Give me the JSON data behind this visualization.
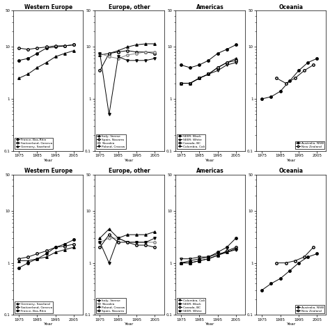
{
  "top_row": {
    "western_europe": {
      "title": "Western Europe",
      "series": [
        {
          "label": "France, Bas-Rhin",
          "marker": "o",
          "fillstyle": "full",
          "color": "black",
          "x": [
            1975,
            1980,
            1985,
            1990,
            1995,
            2000,
            2005
          ],
          "y": [
            5.5,
            6.0,
            7.5,
            9.5,
            10.0,
            10.5,
            11.0
          ]
        },
        {
          "label": "Switzerland, Geneva",
          "marker": "o",
          "fillstyle": "none",
          "color": "black",
          "x": [
            1975,
            1980,
            1985,
            1990,
            1995,
            2000,
            2005
          ],
          "y": [
            9.5,
            9.0,
            9.5,
            10.0,
            10.5,
            10.5,
            11.0
          ]
        },
        {
          "label": "Germany, Saarland",
          "marker": "^",
          "fillstyle": "full",
          "color": "black",
          "x": [
            1975,
            1980,
            1985,
            1990,
            1995,
            2000,
            2005
          ],
          "y": [
            2.5,
            3.0,
            4.0,
            5.0,
            6.5,
            7.5,
            8.5
          ]
        }
      ]
    },
    "europe_other": {
      "title": "Europe, other",
      "series": [
        {
          "label": "Italy, Varese",
          "marker": "^",
          "fillstyle": "full",
          "color": "black",
          "x": [
            1975,
            1980,
            1985,
            1990,
            1995,
            2000,
            2005
          ],
          "y": [
            7.0,
            7.5,
            8.5,
            10.0,
            11.0,
            11.5,
            11.5
          ]
        },
        {
          "label": "Spain, Navarra",
          "marker": "o",
          "fillstyle": "none",
          "color": "black",
          "x": [
            1975,
            1980,
            1985,
            1990,
            1995,
            2000,
            2005
          ],
          "y": [
            3.5,
            7.5,
            8.0,
            8.5,
            8.0,
            8.0,
            7.5
          ]
        },
        {
          "label": "Slovakia",
          "marker": "o",
          "fillstyle": "none",
          "color": "gray",
          "x": [
            1975,
            1980,
            1985,
            1990,
            1995,
            2000,
            2005
          ],
          "y": [
            7.5,
            6.5,
            6.0,
            7.0,
            7.5,
            8.0,
            8.0
          ]
        },
        {
          "label": "Poland, Cracow",
          "marker": "v",
          "fillstyle": "full",
          "color": "black",
          "x": [
            1975,
            1980,
            1985,
            1990,
            1995,
            2000,
            2005
          ],
          "y": [
            7.5,
            0.5,
            6.5,
            5.5,
            5.5,
            5.5,
            6.0
          ]
        }
      ]
    },
    "americas": {
      "title": "Americas",
      "series": [
        {
          "label": "SEER: Black",
          "marker": "o",
          "fillstyle": "full",
          "color": "black",
          "x": [
            1975,
            1980,
            1985,
            1990,
            1995,
            2000,
            2005
          ],
          "y": [
            4.5,
            4.0,
            4.5,
            5.5,
            7.5,
            9.0,
            11.0
          ]
        },
        {
          "label": "SEER: White",
          "marker": "^",
          "fillstyle": "full",
          "color": "black",
          "x": [
            1975,
            1980,
            1985,
            1990,
            1995,
            2000,
            2005
          ],
          "y": [
            2.0,
            2.0,
            2.5,
            3.0,
            4.0,
            5.0,
            6.0
          ]
        },
        {
          "label": "Canada, BC",
          "marker": "o",
          "fillstyle": "none",
          "color": "black",
          "x": [
            1975,
            1980,
            1985,
            1990,
            1995,
            2000,
            2005
          ],
          "y": [
            2.0,
            2.0,
            2.5,
            3.0,
            4.0,
            5.0,
            5.5
          ]
        },
        {
          "label": "Colombia, Cali",
          "marker": "v",
          "fillstyle": "none",
          "color": "black",
          "x": [
            1975,
            1980,
            1985,
            1990,
            1995,
            2000,
            2005
          ],
          "y": [
            2.0,
            2.0,
            2.5,
            3.0,
            3.5,
            4.5,
            5.0
          ]
        }
      ]
    },
    "oceania": {
      "title": "Oceania",
      "series": [
        {
          "label": "Australia, NSW",
          "marker": "o",
          "fillstyle": "full",
          "color": "black",
          "x": [
            1975,
            1980,
            1985,
            1990,
            1995,
            2000,
            2005
          ],
          "y": [
            1.0,
            1.1,
            1.4,
            2.2,
            3.5,
            5.0,
            6.0
          ]
        },
        {
          "label": "New Zealand",
          "marker": "o",
          "fillstyle": "none",
          "color": "black",
          "x": [
            1983,
            1988,
            1993,
            1998,
            2003
          ],
          "y": [
            2.5,
            2.0,
            2.5,
            3.5,
            4.5
          ]
        }
      ]
    }
  },
  "bottom_row": {
    "western_europe": {
      "title": "Western Europe",
      "series": [
        {
          "label": "Germany, Saarland",
          "marker": "^",
          "fillstyle": "full",
          "color": "black",
          "x": [
            1975,
            1980,
            1985,
            1990,
            1995,
            2000,
            2005
          ],
          "y": [
            1.1,
            1.1,
            1.2,
            1.3,
            1.6,
            1.8,
            2.0
          ]
        },
        {
          "label": "Switzerland, Geneva",
          "marker": "o",
          "fillstyle": "none",
          "color": "black",
          "x": [
            1975,
            1980,
            1985,
            1990,
            1995,
            2000,
            2005
          ],
          "y": [
            1.2,
            1.3,
            1.5,
            1.7,
            2.0,
            2.1,
            2.3
          ]
        },
        {
          "label": "France, Bas-Rhin",
          "marker": "o",
          "fillstyle": "full",
          "color": "black",
          "x": [
            1975,
            1980,
            1985,
            1990,
            1995,
            2000,
            2005
          ],
          "y": [
            0.8,
            1.0,
            1.2,
            1.5,
            2.0,
            2.3,
            2.8
          ]
        }
      ]
    },
    "europe_other": {
      "title": "Europe, other",
      "series": [
        {
          "label": "Italy, Varese",
          "marker": "^",
          "fillstyle": "full",
          "color": "black",
          "x": [
            1975,
            1980,
            1985,
            1990,
            1995,
            2000,
            2005
          ],
          "y": [
            3.0,
            4.5,
            3.0,
            3.5,
            3.5,
            3.5,
            4.0
          ]
        },
        {
          "label": "Slovakia",
          "marker": "o",
          "fillstyle": "none",
          "color": "gray",
          "x": [
            1975,
            1980,
            1985,
            1990,
            1995,
            2000,
            2005
          ],
          "y": [
            2.5,
            3.0,
            3.0,
            2.5,
            2.5,
            2.5,
            2.5
          ]
        },
        {
          "label": "Poland, Cracow",
          "marker": "v",
          "fillstyle": "full",
          "color": "black",
          "x": [
            1975,
            1980,
            1985,
            1990,
            1995,
            2000,
            2005
          ],
          "y": [
            2.5,
            1.0,
            3.0,
            2.5,
            2.5,
            2.5,
            3.0
          ]
        },
        {
          "label": "Spain, Navarra",
          "marker": "o",
          "fillstyle": "none",
          "color": "black",
          "x": [
            1975,
            1980,
            1985,
            1990,
            1995,
            2000,
            2005
          ],
          "y": [
            2.0,
            3.5,
            2.5,
            2.5,
            2.2,
            2.2,
            2.0
          ]
        }
      ]
    },
    "americas": {
      "title": "Americas",
      "series": [
        {
          "label": "Colombia, Cali",
          "marker": "v",
          "fillstyle": "none",
          "color": "black",
          "x": [
            1975,
            1980,
            1985,
            1990,
            1995,
            2000,
            2005
          ],
          "y": [
            1.2,
            1.2,
            1.3,
            1.3,
            1.5,
            1.6,
            1.8
          ]
        },
        {
          "label": "SEER: Black",
          "marker": "o",
          "fillstyle": "full",
          "color": "black",
          "x": [
            1975,
            1980,
            1985,
            1990,
            1995,
            2000,
            2005
          ],
          "y": [
            1.0,
            1.1,
            1.2,
            1.3,
            1.6,
            2.0,
            3.0
          ]
        },
        {
          "label": "Canada, BC",
          "marker": "o",
          "fillstyle": "none",
          "color": "black",
          "x": [
            1975,
            1980,
            1985,
            1990,
            1995,
            2000,
            2005
          ],
          "y": [
            1.0,
            1.0,
            1.1,
            1.2,
            1.4,
            1.7,
            2.0
          ]
        },
        {
          "label": "SEER: White",
          "marker": "^",
          "fillstyle": "full",
          "color": "black",
          "x": [
            1975,
            1980,
            1985,
            1990,
            1995,
            2000,
            2005
          ],
          "y": [
            1.0,
            1.0,
            1.1,
            1.2,
            1.4,
            1.6,
            1.9
          ]
        }
      ]
    },
    "oceania": {
      "title": "Oceania",
      "series": [
        {
          "label": "Australia, NSW",
          "marker": "o",
          "fillstyle": "full",
          "color": "black",
          "x": [
            1975,
            1980,
            1985,
            1990,
            1995,
            2000,
            2005
          ],
          "y": [
            0.3,
            0.4,
            0.5,
            0.7,
            1.0,
            1.3,
            1.5
          ]
        },
        {
          "label": "New Zealand",
          "marker": "o",
          "fillstyle": "none",
          "color": "black",
          "x": [
            1983,
            1988,
            1993,
            1998,
            2003
          ],
          "y": [
            1.0,
            1.0,
            1.1,
            1.3,
            2.0
          ]
        }
      ]
    }
  },
  "ylim": [
    0.1,
    50
  ],
  "yticks": [
    0.1,
    1,
    10,
    50
  ],
  "xticks": [
    1975,
    1985,
    1995,
    2005
  ],
  "xlabel": "Year",
  "fig_bg": "white",
  "ax_bg": "white"
}
